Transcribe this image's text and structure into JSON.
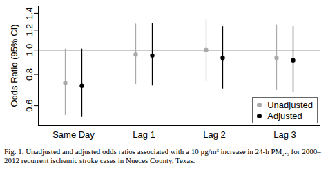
{
  "chart_data": {
    "type": "errorbar",
    "y_label": "Odds Ratio (95% CI)",
    "caption": "Fig. 1. Unadjusted and adjusted odds ratios associated with a 10 μg/m³ increase in 24-h PM₂.₅ for 2000–2012 recurrent ischemic stroke cases in Nueces County, Texas.",
    "categories": [
      "Same Day",
      "Lag 1",
      "Lag 2",
      "Lag 3"
    ],
    "series": [
      {
        "name": "Unadjusted",
        "color": "#aaaaaa",
        "marker": "circle",
        "values": [
          0.74,
          0.96,
          1.0,
          0.93
        ],
        "ci_lower": [
          0.55,
          0.73,
          0.75,
          0.69
        ],
        "ci_upper": [
          1.01,
          1.27,
          1.32,
          1.26
        ]
      },
      {
        "name": "Adjusted",
        "color": "#000000",
        "marker": "circle",
        "values": [
          0.72,
          0.95,
          0.93,
          0.91
        ],
        "ci_lower": [
          0.54,
          0.72,
          0.7,
          0.68
        ],
        "ci_upper": [
          1.01,
          1.28,
          1.24,
          1.24
        ]
      }
    ],
    "log": "y",
    "ylim": [
      0.5,
      1.5
    ],
    "yticks": [
      0.6,
      0.8,
      {
        "value": 1,
        "label": "1.0"
      },
      1.2,
      1.4
    ],
    "reference_line": 1,
    "legend": "bottom-right",
    "grid": false
  }
}
